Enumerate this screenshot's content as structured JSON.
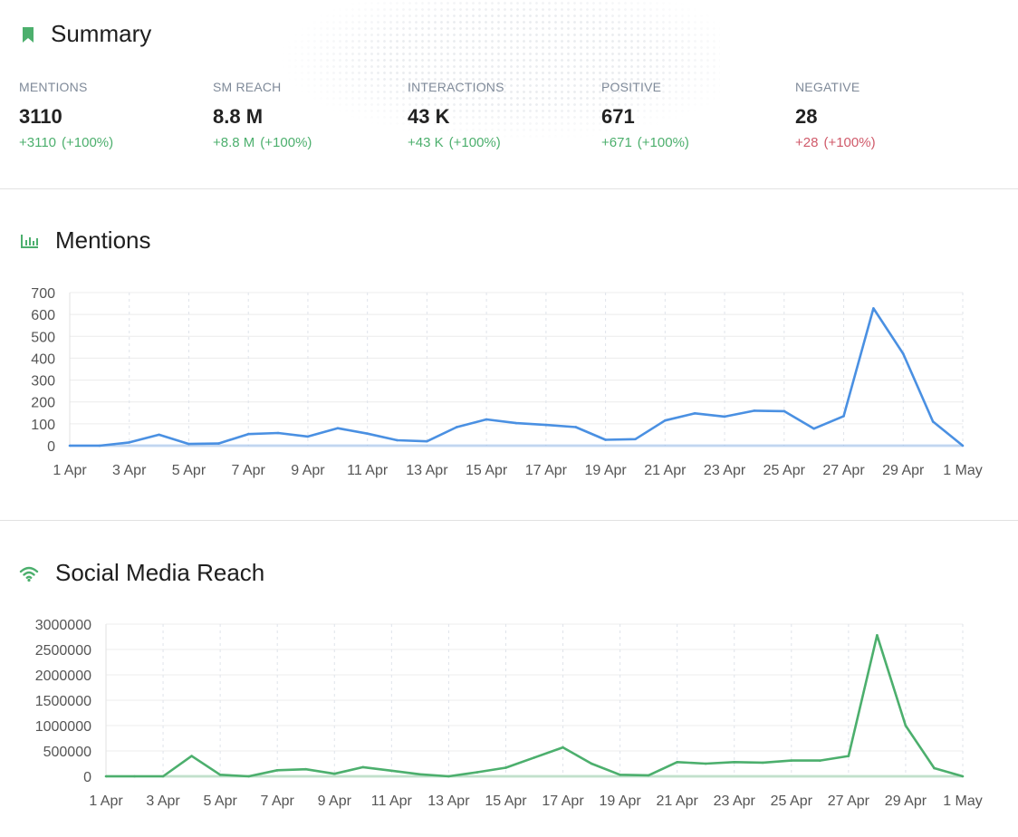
{
  "summary": {
    "title": "Summary",
    "metrics": [
      {
        "label": "MENTIONS",
        "value": "3110",
        "delta": "+3110",
        "pct": "(+100%)",
        "tone": "pos"
      },
      {
        "label": "SM REACH",
        "value": "8.8 M",
        "delta": "+8.8 M",
        "pct": "(+100%)",
        "tone": "pos"
      },
      {
        "label": "INTERACTIONS",
        "value": "43 K",
        "delta": "+43 K",
        "pct": "(+100%)",
        "tone": "pos"
      },
      {
        "label": "POSITIVE",
        "value": "671",
        "delta": "+671",
        "pct": "(+100%)",
        "tone": "pos"
      },
      {
        "label": "NEGATIVE",
        "value": "28",
        "delta": "+28",
        "pct": "(+100%)",
        "tone": "neg"
      }
    ]
  },
  "mentions_section": {
    "title": "Mentions",
    "icon": "bar-chart-icon"
  },
  "reach_section": {
    "title": "Social Media Reach",
    "icon": "wifi-icon"
  },
  "colors": {
    "accent": "#4caf6d",
    "mentions_line": "#4a90e2",
    "reach_line": "#4caf6d",
    "negative": "#d05a6a"
  },
  "chart_data": [
    {
      "type": "line",
      "title": "Mentions",
      "x": [
        "1 Apr",
        "2 Apr",
        "3 Apr",
        "4 Apr",
        "5 Apr",
        "6 Apr",
        "7 Apr",
        "8 Apr",
        "9 Apr",
        "10 Apr",
        "11 Apr",
        "12 Apr",
        "13 Apr",
        "14 Apr",
        "15 Apr",
        "16 Apr",
        "17 Apr",
        "18 Apr",
        "19 Apr",
        "20 Apr",
        "21 Apr",
        "22 Apr",
        "23 Apr",
        "24 Apr",
        "25 Apr",
        "26 Apr",
        "27 Apr",
        "28 Apr",
        "29 Apr",
        "30 Apr",
        "1 May"
      ],
      "x_tick_labels": [
        "1 Apr",
        "3 Apr",
        "5 Apr",
        "7 Apr",
        "9 Apr",
        "11 Apr",
        "13 Apr",
        "15 Apr",
        "17 Apr",
        "19 Apr",
        "21 Apr",
        "23 Apr",
        "25 Apr",
        "27 Apr",
        "29 Apr",
        "1 May"
      ],
      "series": [
        {
          "values": [
            0,
            0,
            15,
            50,
            8,
            10,
            53,
            58,
            42,
            80,
            55,
            25,
            20,
            85,
            120,
            103,
            95,
            85,
            27,
            30,
            115,
            148,
            133,
            160,
            158,
            78,
            135,
            628,
            420,
            110,
            0
          ]
        }
      ],
      "y_ticks": [
        0,
        100,
        200,
        300,
        400,
        500,
        600,
        700
      ],
      "ylim": [
        0,
        700
      ],
      "grid": true
    },
    {
      "type": "line",
      "title": "Social Media Reach",
      "x": [
        "1 Apr",
        "2 Apr",
        "3 Apr",
        "4 Apr",
        "5 Apr",
        "6 Apr",
        "7 Apr",
        "8 Apr",
        "9 Apr",
        "10 Apr",
        "11 Apr",
        "12 Apr",
        "13 Apr",
        "14 Apr",
        "15 Apr",
        "16 Apr",
        "17 Apr",
        "18 Apr",
        "19 Apr",
        "20 Apr",
        "21 Apr",
        "22 Apr",
        "23 Apr",
        "24 Apr",
        "25 Apr",
        "26 Apr",
        "27 Apr",
        "28 Apr",
        "29 Apr",
        "30 Apr",
        "1 May"
      ],
      "x_tick_labels": [
        "1 Apr",
        "3 Apr",
        "5 Apr",
        "7 Apr",
        "9 Apr",
        "11 Apr",
        "13 Apr",
        "15 Apr",
        "17 Apr",
        "19 Apr",
        "21 Apr",
        "23 Apr",
        "25 Apr",
        "27 Apr",
        "29 Apr",
        "1 May"
      ],
      "series": [
        {
          "values": [
            0,
            0,
            0,
            400000,
            30000,
            0,
            120000,
            140000,
            50000,
            180000,
            110000,
            40000,
            0,
            80000,
            170000,
            370000,
            570000,
            250000,
            30000,
            20000,
            280000,
            250000,
            280000,
            270000,
            310000,
            310000,
            400000,
            2780000,
            1000000,
            160000,
            0
          ]
        }
      ],
      "y_ticks": [
        0,
        500000,
        1000000,
        1500000,
        2000000,
        2500000,
        3000000
      ],
      "ylim": [
        0,
        3000000
      ],
      "grid": true
    }
  ]
}
